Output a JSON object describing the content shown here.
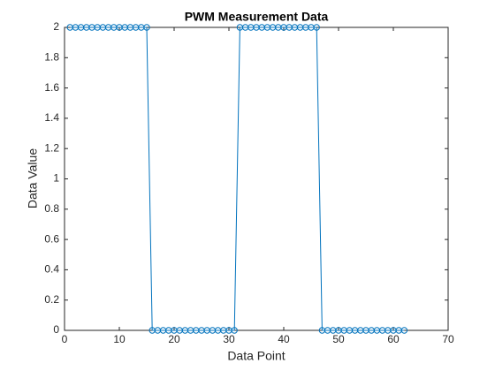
{
  "chart_data": {
    "type": "line",
    "title": "PWM Measurement Data",
    "xlabel": "Data Point",
    "ylabel": "Data Value",
    "x": [
      1,
      2,
      3,
      4,
      5,
      6,
      7,
      8,
      9,
      10,
      11,
      12,
      13,
      14,
      15,
      16,
      17,
      18,
      19,
      20,
      21,
      22,
      23,
      24,
      25,
      26,
      27,
      28,
      29,
      30,
      31,
      32,
      33,
      34,
      35,
      36,
      37,
      38,
      39,
      40,
      41,
      42,
      43,
      44,
      45,
      46,
      47,
      48,
      49,
      50,
      51,
      52,
      53,
      54,
      55,
      56,
      57,
      58,
      59,
      60,
      61,
      62
    ],
    "values": [
      2,
      2,
      2,
      2,
      2,
      2,
      2,
      2,
      2,
      2,
      2,
      2,
      2,
      2,
      2,
      0,
      0,
      0,
      0,
      0,
      0,
      0,
      0,
      0,
      0,
      0,
      0,
      0,
      0,
      0,
      0,
      2,
      2,
      2,
      2,
      2,
      2,
      2,
      2,
      2,
      2,
      2,
      2,
      2,
      2,
      2,
      0,
      0,
      0,
      0,
      0,
      0,
      0,
      0,
      0,
      0,
      0,
      0,
      0,
      0,
      0,
      0
    ],
    "color": "#0072bd",
    "marker": "o",
    "xlim": [
      0,
      70
    ],
    "xticks": [
      0,
      10,
      20,
      30,
      40,
      50,
      60,
      70
    ],
    "ylim": [
      0,
      2
    ],
    "yticks": [
      0,
      0.2,
      0.4,
      0.6,
      0.8,
      1,
      1.2,
      1.4,
      1.6,
      1.8,
      2
    ]
  }
}
